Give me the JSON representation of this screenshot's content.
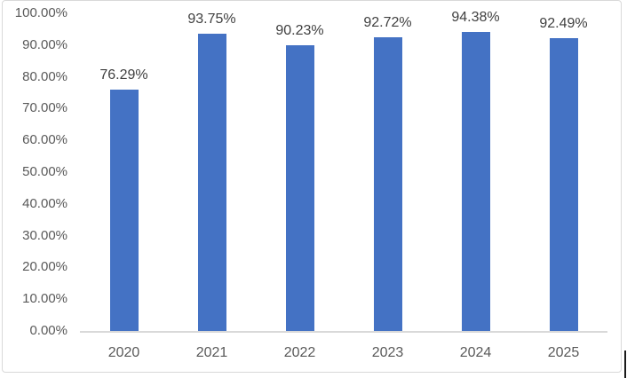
{
  "chart_data": {
    "type": "bar",
    "title": "",
    "xlabel": "",
    "ylabel": "",
    "categories": [
      "2020",
      "2021",
      "2022",
      "2023",
      "2024",
      "2025"
    ],
    "values": [
      76.29,
      93.75,
      90.23,
      92.72,
      94.38,
      92.49
    ],
    "data_labels": [
      "76.29%",
      "93.75%",
      "90.23%",
      "92.72%",
      "94.38%",
      "92.49%"
    ],
    "ylim": [
      0,
      100
    ],
    "ytick_values": [
      0,
      10,
      20,
      30,
      40,
      50,
      60,
      70,
      80,
      90,
      100
    ],
    "ytick_labels": [
      "0.00%",
      "10.00%",
      "20.00%",
      "30.00%",
      "40.00%",
      "50.00%",
      "60.00%",
      "70.00%",
      "80.00%",
      "90.00%",
      "100.00%"
    ],
    "grid": false,
    "legend": false,
    "bar_color": "#4472C4",
    "axis_label_color": "#595959",
    "data_label_color": "#404040",
    "axis_line_color": "#D9D9D9",
    "chart_border_color": "#D9D9D9"
  }
}
